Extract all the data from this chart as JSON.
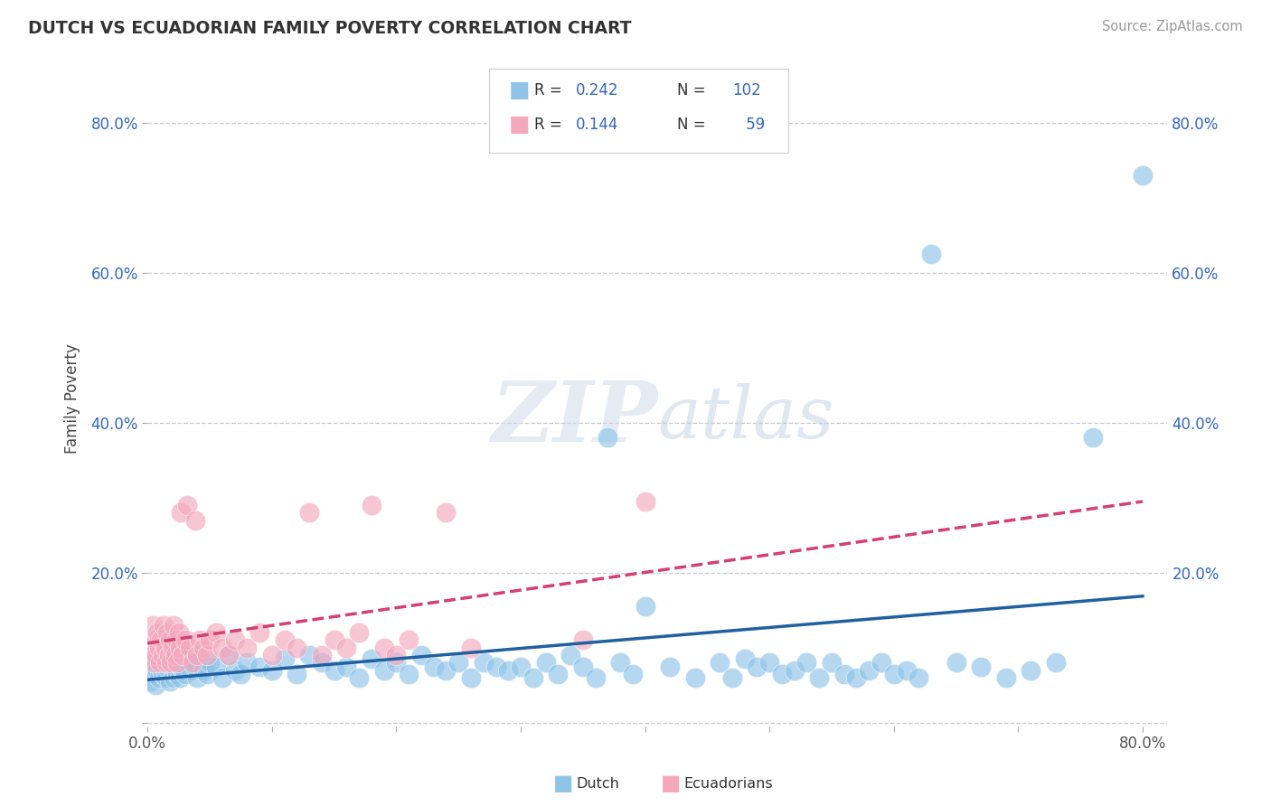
{
  "title": "DUTCH VS ECUADORIAN FAMILY POVERTY CORRELATION CHART",
  "source": "Source: ZipAtlas.com",
  "ylabel": "Family Poverty",
  "dutch_color": "#8ec4e8",
  "ecu_color": "#f4a8be",
  "dutch_line_color": "#2060a0",
  "ecu_line_color": "#d44070",
  "background_color": "#ffffff",
  "grid_color": "#c8c8c8",
  "xlim": [
    0.0,
    0.82
  ],
  "ylim": [
    -0.005,
    0.87
  ],
  "yticks": [
    0.0,
    0.2,
    0.4,
    0.6,
    0.8
  ],
  "ytick_labels": [
    "",
    "20.0%",
    "40.0%",
    "60.0%",
    "80.0%"
  ],
  "dutch_R": 0.242,
  "dutch_N": 102,
  "ecu_R": 0.144,
  "ecu_N": 59,
  "dutch_scatter": [
    [
      0.002,
      0.07
    ],
    [
      0.003,
      0.055
    ],
    [
      0.004,
      0.08
    ],
    [
      0.005,
      0.065
    ],
    [
      0.006,
      0.05
    ],
    [
      0.007,
      0.09
    ],
    [
      0.008,
      0.07
    ],
    [
      0.009,
      0.06
    ],
    [
      0.01,
      0.075
    ],
    [
      0.011,
      0.08
    ],
    [
      0.012,
      0.065
    ],
    [
      0.013,
      0.09
    ],
    [
      0.014,
      0.07
    ],
    [
      0.015,
      0.06
    ],
    [
      0.016,
      0.08
    ],
    [
      0.017,
      0.07
    ],
    [
      0.018,
      0.055
    ],
    [
      0.019,
      0.09
    ],
    [
      0.02,
      0.075
    ],
    [
      0.021,
      0.06
    ],
    [
      0.022,
      0.08
    ],
    [
      0.023,
      0.07
    ],
    [
      0.024,
      0.065
    ],
    [
      0.025,
      0.085
    ],
    [
      0.026,
      0.06
    ],
    [
      0.027,
      0.075
    ],
    [
      0.028,
      0.09
    ],
    [
      0.029,
      0.07
    ],
    [
      0.03,
      0.065
    ],
    [
      0.032,
      0.08
    ],
    [
      0.035,
      0.07
    ],
    [
      0.038,
      0.075
    ],
    [
      0.04,
      0.06
    ],
    [
      0.042,
      0.085
    ],
    [
      0.045,
      0.07
    ],
    [
      0.048,
      0.065
    ],
    [
      0.05,
      0.08
    ],
    [
      0.055,
      0.075
    ],
    [
      0.06,
      0.06
    ],
    [
      0.065,
      0.09
    ],
    [
      0.07,
      0.07
    ],
    [
      0.075,
      0.065
    ],
    [
      0.08,
      0.08
    ],
    [
      0.09,
      0.075
    ],
    [
      0.1,
      0.07
    ],
    [
      0.11,
      0.085
    ],
    [
      0.12,
      0.065
    ],
    [
      0.13,
      0.09
    ],
    [
      0.14,
      0.08
    ],
    [
      0.15,
      0.07
    ],
    [
      0.16,
      0.075
    ],
    [
      0.17,
      0.06
    ],
    [
      0.18,
      0.085
    ],
    [
      0.19,
      0.07
    ],
    [
      0.2,
      0.08
    ],
    [
      0.21,
      0.065
    ],
    [
      0.22,
      0.09
    ],
    [
      0.23,
      0.075
    ],
    [
      0.24,
      0.07
    ],
    [
      0.25,
      0.08
    ],
    [
      0.26,
      0.06
    ],
    [
      0.27,
      0.08
    ],
    [
      0.28,
      0.075
    ],
    [
      0.29,
      0.07
    ],
    [
      0.3,
      0.075
    ],
    [
      0.31,
      0.06
    ],
    [
      0.32,
      0.08
    ],
    [
      0.33,
      0.065
    ],
    [
      0.34,
      0.09
    ],
    [
      0.35,
      0.075
    ],
    [
      0.36,
      0.06
    ],
    [
      0.37,
      0.38
    ],
    [
      0.38,
      0.08
    ],
    [
      0.39,
      0.065
    ],
    [
      0.4,
      0.155
    ],
    [
      0.42,
      0.075
    ],
    [
      0.44,
      0.06
    ],
    [
      0.46,
      0.08
    ],
    [
      0.47,
      0.06
    ],
    [
      0.48,
      0.085
    ],
    [
      0.49,
      0.075
    ],
    [
      0.5,
      0.08
    ],
    [
      0.51,
      0.065
    ],
    [
      0.52,
      0.07
    ],
    [
      0.53,
      0.08
    ],
    [
      0.54,
      0.06
    ],
    [
      0.55,
      0.08
    ],
    [
      0.56,
      0.065
    ],
    [
      0.57,
      0.06
    ],
    [
      0.58,
      0.07
    ],
    [
      0.59,
      0.08
    ],
    [
      0.6,
      0.065
    ],
    [
      0.61,
      0.07
    ],
    [
      0.62,
      0.06
    ],
    [
      0.63,
      0.625
    ],
    [
      0.65,
      0.08
    ],
    [
      0.67,
      0.075
    ],
    [
      0.69,
      0.06
    ],
    [
      0.71,
      0.07
    ],
    [
      0.73,
      0.08
    ],
    [
      0.76,
      0.38
    ],
    [
      0.8,
      0.73
    ]
  ],
  "ecu_scatter": [
    [
      0.002,
      0.1
    ],
    [
      0.003,
      0.09
    ],
    [
      0.004,
      0.13
    ],
    [
      0.005,
      0.08
    ],
    [
      0.006,
      0.11
    ],
    [
      0.007,
      0.09
    ],
    [
      0.008,
      0.12
    ],
    [
      0.009,
      0.1
    ],
    [
      0.01,
      0.08
    ],
    [
      0.011,
      0.11
    ],
    [
      0.012,
      0.09
    ],
    [
      0.013,
      0.13
    ],
    [
      0.014,
      0.1
    ],
    [
      0.015,
      0.08
    ],
    [
      0.016,
      0.12
    ],
    [
      0.017,
      0.09
    ],
    [
      0.018,
      0.11
    ],
    [
      0.019,
      0.08
    ],
    [
      0.02,
      0.1
    ],
    [
      0.021,
      0.13
    ],
    [
      0.022,
      0.09
    ],
    [
      0.023,
      0.11
    ],
    [
      0.024,
      0.08
    ],
    [
      0.025,
      0.12
    ],
    [
      0.026,
      0.1
    ],
    [
      0.027,
      0.28
    ],
    [
      0.028,
      0.09
    ],
    [
      0.03,
      0.11
    ],
    [
      0.032,
      0.29
    ],
    [
      0.034,
      0.1
    ],
    [
      0.036,
      0.08
    ],
    [
      0.038,
      0.27
    ],
    [
      0.04,
      0.09
    ],
    [
      0.042,
      0.11
    ],
    [
      0.045,
      0.1
    ],
    [
      0.048,
      0.09
    ],
    [
      0.05,
      0.11
    ],
    [
      0.055,
      0.12
    ],
    [
      0.06,
      0.1
    ],
    [
      0.065,
      0.09
    ],
    [
      0.07,
      0.11
    ],
    [
      0.08,
      0.1
    ],
    [
      0.09,
      0.12
    ],
    [
      0.1,
      0.09
    ],
    [
      0.11,
      0.11
    ],
    [
      0.12,
      0.1
    ],
    [
      0.13,
      0.28
    ],
    [
      0.14,
      0.09
    ],
    [
      0.15,
      0.11
    ],
    [
      0.16,
      0.1
    ],
    [
      0.17,
      0.12
    ],
    [
      0.18,
      0.29
    ],
    [
      0.19,
      0.1
    ],
    [
      0.2,
      0.09
    ],
    [
      0.21,
      0.11
    ],
    [
      0.24,
      0.28
    ],
    [
      0.26,
      0.1
    ],
    [
      0.35,
      0.11
    ],
    [
      0.4,
      0.295
    ]
  ]
}
